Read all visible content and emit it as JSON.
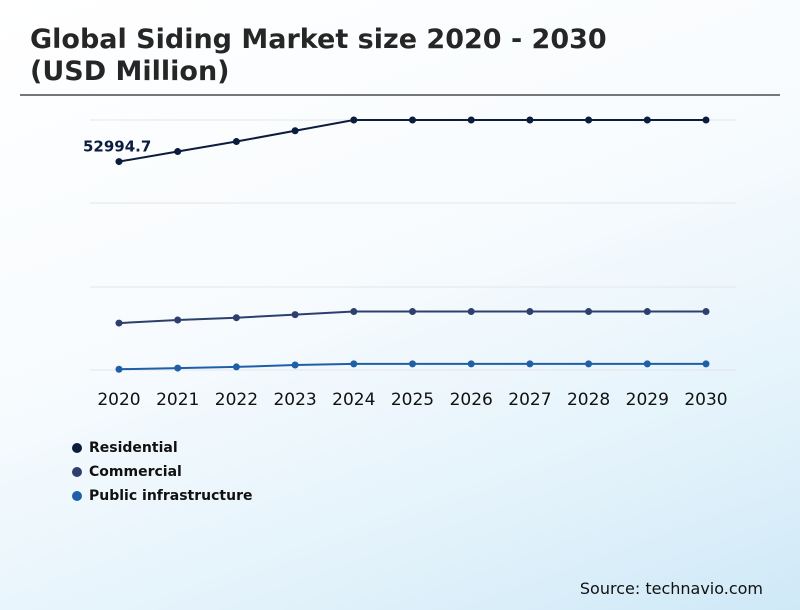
{
  "chart_data": {
    "type": "line",
    "title": "Global Siding Market size 2020 - 2030\n(USD Million)",
    "categories": [
      "2020",
      "2021",
      "2022",
      "2023",
      "2024",
      "2025",
      "2026",
      "2027",
      "2028",
      "2029",
      "2030"
    ],
    "series": [
      {
        "name": "Residential",
        "color": "#0b1c3d",
        "values": [
          52994.7,
          54300,
          55600,
          57000,
          58400,
          58400,
          58400,
          58400,
          58400,
          58400,
          58400
        ]
      },
      {
        "name": "Commercial",
        "color": "#2e3f6e",
        "values": [
          32000,
          32400,
          32700,
          33100,
          33500,
          33500,
          33500,
          33500,
          33500,
          33500,
          33500
        ]
      },
      {
        "name": "Public infrastructure",
        "color": "#1f5fa8",
        "values": [
          26000,
          26150,
          26300,
          26550,
          26700,
          26700,
          26700,
          26700,
          26700,
          26700,
          26700
        ]
      }
    ],
    "data_labels": [
      {
        "series": 0,
        "index": 0,
        "text": "52994.7"
      }
    ],
    "ylim": [
      25900,
      58400
    ],
    "grid": true,
    "legend": "bottom-left"
  },
  "source": "Source: technavio.com"
}
